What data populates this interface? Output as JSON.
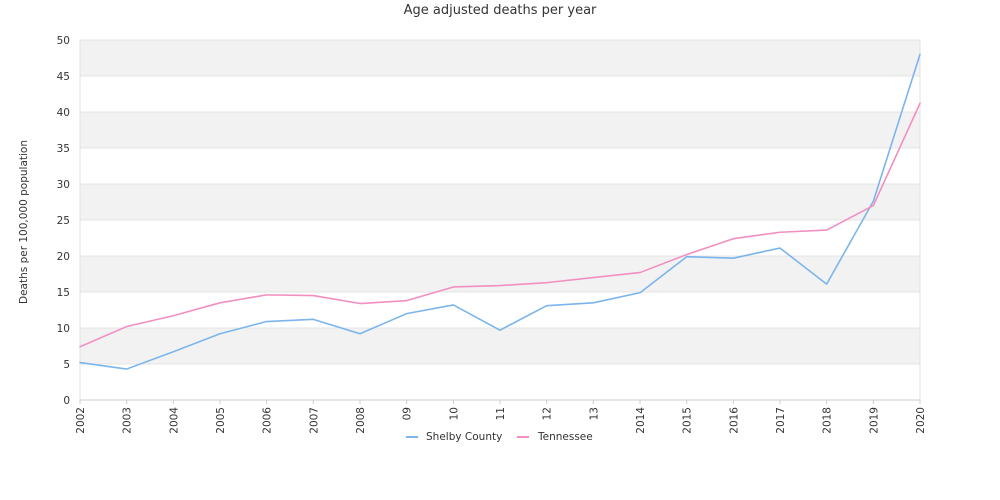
{
  "chart_data": {
    "type": "line",
    "title": "Age adjusted deaths per year",
    "xlabel": "",
    "ylabel": "Deaths per 100,000 population",
    "categories": [
      "2002",
      "2003",
      "2004",
      "2005",
      "2006",
      "2007",
      "2008",
      "09",
      "10",
      "11",
      "12",
      "13",
      "2014",
      "2015",
      "2016",
      "2017",
      "2018",
      "2019",
      "2020"
    ],
    "ylim": [
      0,
      50
    ],
    "yticks": [
      0,
      5,
      10,
      15,
      20,
      25,
      30,
      35,
      40,
      45,
      50
    ],
    "grid": "alternating horizontal bands",
    "legend_position": "bottom",
    "series": [
      {
        "name": "Shelby County",
        "color": "#7cb5ec",
        "values": [
          5.2,
          4.3,
          6.7,
          9.2,
          10.9,
          11.2,
          9.2,
          12.0,
          13.2,
          9.7,
          13.1,
          13.5,
          14.9,
          19.9,
          19.7,
          21.1,
          16.1,
          27.6,
          48.0
        ]
      },
      {
        "name": "Tennessee",
        "color": "#f28fc0",
        "values": [
          7.4,
          10.2,
          11.7,
          13.5,
          14.6,
          14.5,
          13.4,
          13.8,
          15.7,
          15.9,
          16.3,
          17.0,
          17.7,
          20.2,
          22.4,
          23.3,
          23.6,
          27.0,
          41.2
        ]
      }
    ]
  }
}
